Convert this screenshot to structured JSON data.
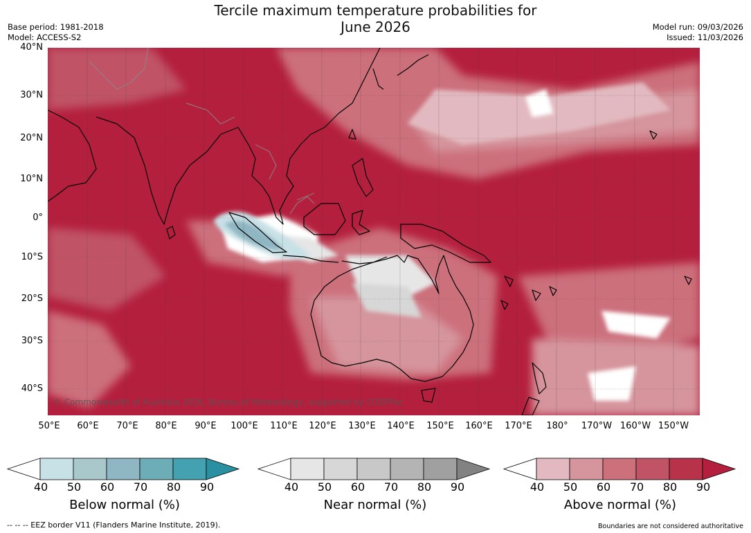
{
  "title_line1": "Tercile maximum temperature probabilities for",
  "title_line2": "June 2026",
  "meta_left": {
    "base_period": "Base period: 1981-2018",
    "model": "Model: ACCESS-S2"
  },
  "meta_right": {
    "model_run": "Model run: 09/03/2026",
    "issued": "Issued: 11/03/2026"
  },
  "map": {
    "lat_labels": [
      "40°N",
      "30°N",
      "20°N",
      "10°N",
      "0°",
      "10°S",
      "20°S",
      "30°S",
      "40°S"
    ],
    "lon_labels": [
      "50°E",
      "60°E",
      "70°E",
      "80°E",
      "90°E",
      "100°E",
      "110°E",
      "120°E",
      "130°E",
      "140°E",
      "150°E",
      "160°E",
      "170°E",
      "180°",
      "170°W",
      "160°W",
      "150°W"
    ],
    "copyright": "© Commonwealth of Australia 2026, Bureau of Meteorology, supported by COSPPac",
    "colors": {
      "above_dominant": "#b41f3d",
      "ocean_bg": "#b41f3d"
    }
  },
  "colorbars": [
    {
      "name": "below",
      "title": "Below normal (%)",
      "ticks": [
        "40",
        "50",
        "60",
        "70",
        "80",
        "90"
      ],
      "colors": [
        "#ffffff",
        "#c8e1e6",
        "#a8c8cc",
        "#8fb6c3",
        "#6cadb7",
        "#44a1b0",
        "#2a8fa0"
      ]
    },
    {
      "name": "near",
      "title": "Near normal (%)",
      "ticks": [
        "40",
        "50",
        "60",
        "70",
        "80",
        "90"
      ],
      "colors": [
        "#ffffff",
        "#e6e6e6",
        "#d7d7d7",
        "#c8c8c8",
        "#b4b4b4",
        "#a0a0a0",
        "#828282"
      ]
    },
    {
      "name": "above",
      "title": "Above normal (%)",
      "ticks": [
        "40",
        "50",
        "60",
        "70",
        "80",
        "90"
      ],
      "colors": [
        "#ffffff",
        "#e2b9c0",
        "#d6949c",
        "#cc707b",
        "#c05366",
        "#b83249",
        "#b41f3d"
      ]
    }
  ],
  "footer_left": "--  --  -- EEZ border V11 (Flanders Marine Institute, 2019).",
  "footer_right": "Boundaries are not considered authoritative"
}
